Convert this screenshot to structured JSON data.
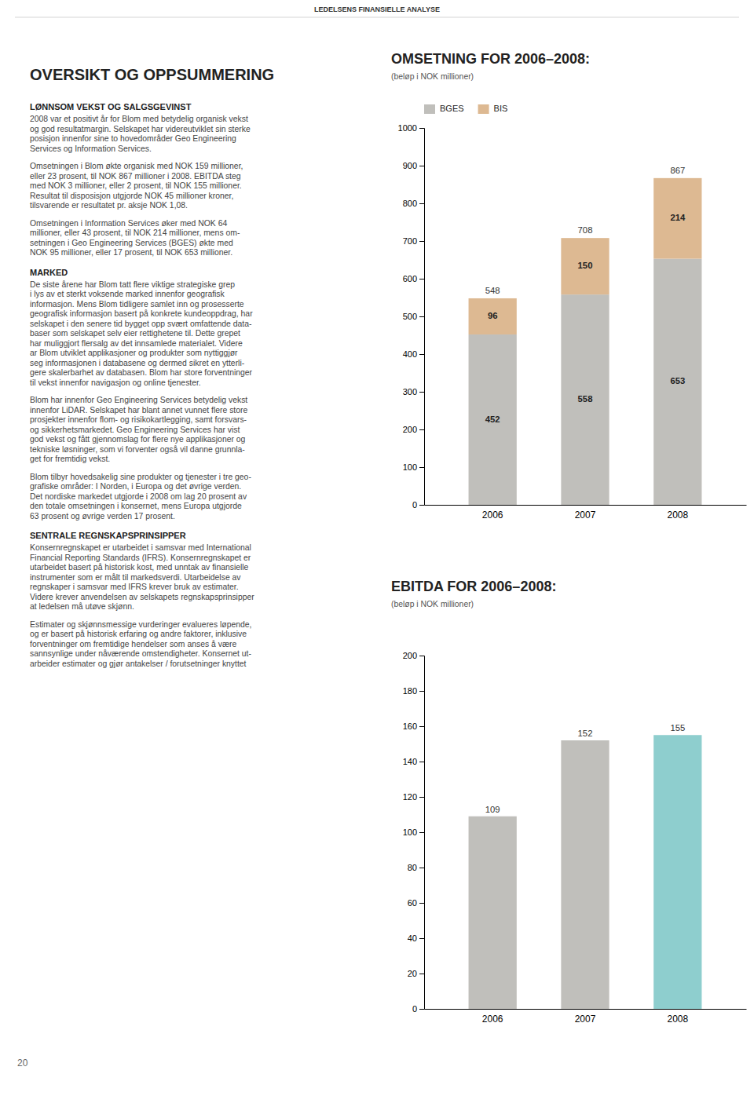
{
  "page": {
    "header": "LEDELSENS FINANSIELLE ANALYSE",
    "title": "OVERSIKT OG OPPSUMMERING",
    "sections": [
      {
        "title": "LØNNSOM VEKST OG SALGSGEVINST",
        "paragraphs": [
          [
            "2008 var et positivt år for Blom med betydelig organisk vekst",
            "og god resultatmargin. Selskapet har videreutviklet sin sterke",
            "posisjon innenfor sine to hovedområder Geo Engineering",
            "Services og Information Services."
          ],
          [
            "Omsetningen i Blom økte organisk med NOK 159 millioner,",
            "eller 23 prosent, til NOK 867 millioner i 2008. EBITDA steg",
            "med NOK 3 millioner, eller 2 prosent, til NOK 155 millioner.",
            "Resultat til disposisjon utgjorde NOK 45 millioner kroner,",
            "tilsvarende er resultatet pr. aksje NOK 1,08."
          ],
          [
            "Omsetningen i Information Services øker med NOK 64",
            "millioner, eller 43 prosent, til NOK 214 millioner, mens om-",
            "setningen i Geo Engineering Services (BGES) økte med",
            "NOK 95 millioner, eller 17 prosent, til NOK 653 millioner."
          ]
        ]
      },
      {
        "title": "MARKED",
        "paragraphs": [
          [
            "De siste årene har Blom tatt flere viktige strategiske grep",
            "i lys av et sterkt voksende marked innenfor geografisk",
            "informasjon. Mens Blom tidligere samlet inn og prosesserte",
            "geografisk informasjon basert på konkrete kundeoppdrag, har",
            "selskapet i den senere tid bygget opp svært omfattende data-",
            "baser som selskapet selv eier rettighetene til. Dette grepet",
            "har muliggjort flersalg av det innsamlede materialet. Videre",
            " ar Blom utviklet applikasjoner og produkter som nyttiggjør",
            "seg informasjonen i databasene og dermed sikret en ytterli-",
            "gere skalerbarhet av databasen. Blom har store forventninger",
            "til vekst innenfor navigasjon og online tjenester."
          ],
          [
            "Blom har innenfor Geo Engineering Services betydelig vekst",
            "innenfor LiDAR. Selskapet har blant annet vunnet flere store",
            "prosjekter innenfor flom- og risikokartlegging, samt forsvars-",
            "og sikkerhetsmarkedet. Geo Engineering Services har vist",
            "god vekst og fått gjennomslag for flere nye applikasjoner og",
            "tekniske løsninger, som vi forventer også vil danne grunnla-",
            "get for fremtidig vekst."
          ],
          [
            "Blom tilbyr hovedsakelig sine produkter og tjenester i tre geo-",
            "grafiske områder: I Norden, i Europa og det øvrige verden.",
            "Det nordiske markedet utgjorde i 2008 om lag 20 prosent av",
            "den totale omsetningen i konsernet, mens Europa utgjorde",
            "63 prosent og øvrige verden 17 prosent."
          ]
        ]
      },
      {
        "title": "SENTRALE REGNSKAPSPRINSIPPER",
        "paragraphs": [
          [
            "Konsernregnskapet er utarbeidet i samsvar med International",
            "Financial Reporting Standards (IFRS). Konsernregnskapet er",
            "utarbeidet basert på historisk kost, med unntak av finansielle",
            "instrumenter som er målt til markedsverdi. Utarbeidelse av",
            "regnskaper i samsvar med IFRS krever bruk av estimater.",
            "Videre krever anvendelsen av selskapets regnskapsprinsipper",
            "at ledelsen må utøve skjønn."
          ],
          [
            "Estimater og skjønnsmessige vurderinger evalueres løpende,",
            "og er basert på historisk erfaring og andre faktorer, inklusive",
            "forventninger om fremtidige hendelser som anses å være",
            "sannsynlige under nåværende omstendigheter. Konsernet ut-",
            "arbeider estimater og gjør antakelser / forutsetninger knyttet"
          ]
        ]
      }
    ],
    "page_number": "20"
  },
  "chart_data": [
    {
      "type": "bar",
      "title": "OMSETNING FOR 2006–2008:",
      "subtitle": "(beløp i NOK millioner)",
      "categories": [
        "2006",
        "2007",
        "2008"
      ],
      "series": [
        {
          "name": "BGES",
          "color": "#c0bfbb",
          "values": [
            452,
            558,
            653
          ]
        },
        {
          "name": "BIS",
          "color": "#ddb992",
          "values": [
            96,
            150,
            214
          ]
        }
      ],
      "totals": [
        548,
        708,
        867
      ],
      "stacked": true,
      "data_labels": true,
      "legend": "top-left",
      "grid": false,
      "ylim": [
        0,
        1000
      ],
      "yticks": [
        0,
        100,
        200,
        300,
        400,
        500,
        600,
        700,
        800,
        900,
        1000
      ]
    },
    {
      "type": "bar",
      "title": "EBITDA FOR 2006–2008:",
      "subtitle": "(beløp i NOK millioner)",
      "categories": [
        "2006",
        "2007",
        "2008"
      ],
      "values": [
        109,
        152,
        155
      ],
      "colors": [
        "#c0bfbb",
        "#c0bfbb",
        "#8ecece"
      ],
      "data_labels": true,
      "grid": false,
      "ylim": [
        0,
        200
      ],
      "yticks": [
        0,
        20,
        40,
        60,
        80,
        100,
        120,
        140,
        160,
        180,
        200
      ]
    }
  ]
}
